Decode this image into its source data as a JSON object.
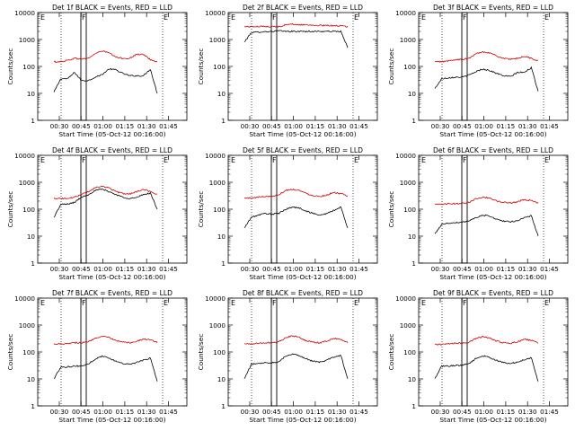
{
  "page": {
    "y_axis_label": "Counts/sec",
    "x_axis_label": "Start Time (05-Oct-12 00:16:00)"
  },
  "colors": {
    "events": "#000000",
    "lld": "#cc0000",
    "axis": "#000000"
  },
  "chart_data": [
    {
      "type": "line",
      "title": "Det 1f BLACK = Events, RED = LLD",
      "xlabel": "Start Time (05-Oct-12 00:16:00)",
      "ylabel": "Counts/sec",
      "yscale": "log",
      "ylim": [
        1,
        10000
      ],
      "ytick_labels": [
        "1",
        "10",
        "100",
        "1000",
        "10000"
      ],
      "xtick_labels": [
        "00:30",
        "00:45",
        "01:00",
        "01:15",
        "01:30",
        "01:45"
      ],
      "markers": [
        "E",
        "F",
        "E"
      ],
      "series": [
        {
          "name": "Events",
          "values": [
            11,
            35,
            35,
            60,
            30,
            30,
            40,
            50,
            80,
            75,
            55,
            45,
            45,
            45,
            80,
            10
          ]
        },
        {
          "name": "LLD",
          "values": [
            150,
            150,
            170,
            200,
            190,
            200,
            300,
            380,
            320,
            220,
            200,
            200,
            280,
            280,
            180,
            150
          ]
        }
      ]
    },
    {
      "type": "line",
      "title": "Det 2f BLACK = Events, RED = LLD",
      "xlabel": "Start Time (05-Oct-12 00:16:00)",
      "ylabel": "Counts/sec",
      "yscale": "log",
      "ylim": [
        1,
        10000
      ],
      "ytick_labels": [
        "1",
        "10",
        "100",
        "1000",
        "10000"
      ],
      "xtick_labels": [
        "00:30",
        "00:45",
        "01:00",
        "01:15",
        "01:30",
        "01:45"
      ],
      "markers": [
        "E",
        "F",
        "E"
      ],
      "series": [
        {
          "name": "Events",
          "values": [
            800,
            1800,
            1900,
            1950,
            2000,
            2100,
            2000,
            2000,
            2000,
            2000,
            2000,
            2000,
            2000,
            2000,
            2000,
            500
          ]
        },
        {
          "name": "LLD",
          "values": [
            3000,
            3000,
            3000,
            3100,
            3000,
            3000,
            3500,
            3700,
            3500,
            3500,
            3400,
            3300,
            3300,
            3300,
            3200,
            3000
          ]
        }
      ]
    },
    {
      "type": "line",
      "title": "Det 3f BLACK = Events, RED = LLD",
      "xlabel": "Start Time (05-Oct-12 00:16:00)",
      "ylabel": "Counts/sec",
      "yscale": "log",
      "ylim": [
        1,
        10000
      ],
      "ytick_labels": [
        "1",
        "10",
        "100",
        "1000",
        "10000"
      ],
      "xtick_labels": [
        "00:30",
        "00:45",
        "01:00",
        "01:15",
        "01:30",
        "01:45"
      ],
      "markers": [
        "E",
        "F",
        "E"
      ],
      "series": [
        {
          "name": "Events",
          "values": [
            15,
            35,
            38,
            40,
            40,
            48,
            65,
            80,
            70,
            55,
            45,
            42,
            60,
            60,
            90,
            12
          ]
        },
        {
          "name": "LLD",
          "values": [
            150,
            150,
            160,
            180,
            180,
            200,
            300,
            350,
            320,
            240,
            200,
            180,
            200,
            240,
            200,
            160
          ]
        }
      ]
    },
    {
      "type": "line",
      "title": "Det 4f BLACK = Events, RED = LLD",
      "xlabel": "Start Time (05-Oct-12 00:16:00)",
      "ylabel": "Counts/sec",
      "yscale": "log",
      "ylim": [
        1,
        10000
      ],
      "ytick_labels": [
        "1",
        "10",
        "100",
        "1000",
        "10000"
      ],
      "xtick_labels": [
        "00:30",
        "00:45",
        "01:00",
        "01:15",
        "01:30",
        "01:45"
      ],
      "markers": [
        "E",
        "F",
        "E"
      ],
      "series": [
        {
          "name": "Events",
          "values": [
            50,
            150,
            155,
            180,
            280,
            350,
            500,
            550,
            450,
            350,
            280,
            250,
            270,
            350,
            400,
            100
          ]
        },
        {
          "name": "LLD",
          "values": [
            260,
            250,
            250,
            280,
            350,
            450,
            620,
            700,
            620,
            450,
            380,
            370,
            450,
            550,
            450,
            350
          ]
        }
      ]
    },
    {
      "type": "line",
      "title": "Det 5f BLACK = Events, RED = LLD",
      "xlabel": "Start Time (05-Oct-12 00:16:00)",
      "ylabel": "Counts/sec",
      "yscale": "log",
      "ylim": [
        1,
        10000
      ],
      "ytick_labels": [
        "1",
        "10",
        "100",
        "1000",
        "10000"
      ],
      "xtick_labels": [
        "00:30",
        "00:45",
        "01:00",
        "01:15",
        "01:30",
        "01:45"
      ],
      "markers": [
        "E",
        "F",
        "E"
      ],
      "series": [
        {
          "name": "Events",
          "values": [
            20,
            50,
            60,
            70,
            65,
            70,
            100,
            120,
            110,
            85,
            70,
            60,
            70,
            90,
            120,
            20
          ]
        },
        {
          "name": "LLD",
          "values": [
            260,
            260,
            280,
            300,
            300,
            350,
            500,
            550,
            500,
            380,
            320,
            300,
            340,
            420,
            380,
            300
          ]
        }
      ]
    },
    {
      "type": "line",
      "title": "Det 6f BLACK = Events, RED = LLD",
      "xlabel": "Start Time (05-Oct-12 00:16:00)",
      "ylabel": "Counts/sec",
      "yscale": "log",
      "ylim": [
        1,
        10000
      ],
      "ytick_labels": [
        "1",
        "10",
        "100",
        "1000",
        "10000"
      ],
      "xtick_labels": [
        "00:30",
        "00:45",
        "01:00",
        "01:15",
        "01:30",
        "01:45"
      ],
      "markers": [
        "E",
        "F",
        "E"
      ],
      "series": [
        {
          "name": "Events",
          "values": [
            12,
            28,
            30,
            32,
            32,
            38,
            50,
            60,
            55,
            42,
            36,
            34,
            38,
            48,
            58,
            10
          ]
        },
        {
          "name": "LLD",
          "values": [
            150,
            150,
            160,
            160,
            170,
            180,
            250,
            280,
            260,
            200,
            180,
            170,
            190,
            230,
            210,
            170
          ]
        }
      ]
    },
    {
      "type": "line",
      "title": "Det 7f BLACK = Events, RED = LLD",
      "xlabel": "Start Time (05-Oct-12 00:16:00)",
      "ylabel": "Counts/sec",
      "yscale": "log",
      "ylim": [
        1,
        10000
      ],
      "ytick_labels": [
        "1",
        "10",
        "100",
        "1000",
        "10000"
      ],
      "xtick_labels": [
        "00:30",
        "00:45",
        "01:00",
        "01:15",
        "01:30",
        "01:45"
      ],
      "markers": [
        "E",
        "F",
        "E"
      ],
      "series": [
        {
          "name": "Events",
          "values": [
            10,
            28,
            28,
            30,
            30,
            36,
            55,
            70,
            60,
            45,
            38,
            35,
            40,
            50,
            60,
            8
          ]
        },
        {
          "name": "LLD",
          "values": [
            200,
            200,
            210,
            220,
            220,
            240,
            330,
            380,
            340,
            260,
            230,
            220,
            250,
            300,
            280,
            230
          ]
        }
      ]
    },
    {
      "type": "line",
      "title": "Det 8f BLACK = Events, RED = LLD",
      "xlabel": "Start Time (05-Oct-12 00:16:00)",
      "ylabel": "Counts/sec",
      "yscale": "log",
      "ylim": [
        1,
        10000
      ],
      "ytick_labels": [
        "1",
        "10",
        "100",
        "1000",
        "10000"
      ],
      "xtick_labels": [
        "00:30",
        "00:45",
        "01:00",
        "01:15",
        "01:30",
        "01:45"
      ],
      "markers": [
        "E",
        "F",
        "E"
      ],
      "series": [
        {
          "name": "Events",
          "values": [
            10,
            35,
            38,
            40,
            40,
            45,
            70,
            85,
            75,
            55,
            45,
            42,
            50,
            65,
            75,
            10
          ]
        },
        {
          "name": "LLD",
          "values": [
            200,
            200,
            210,
            220,
            220,
            240,
            340,
            400,
            350,
            260,
            230,
            220,
            260,
            320,
            290,
            230
          ]
        }
      ]
    },
    {
      "type": "line",
      "title": "Det 9f BLACK = Events, RED = LLD",
      "xlabel": "Start Time (05-Oct-12 00:16:00)",
      "ylabel": "Counts/sec",
      "yscale": "log",
      "ylim": [
        1,
        10000
      ],
      "ytick_labels": [
        "1",
        "10",
        "100",
        "1000",
        "10000"
      ],
      "xtick_labels": [
        "00:30",
        "00:45",
        "01:00",
        "01:15",
        "01:30",
        "01:45"
      ],
      "markers": [
        "E",
        "F",
        "E"
      ],
      "series": [
        {
          "name": "Events",
          "values": [
            10,
            30,
            30,
            32,
            32,
            38,
            58,
            72,
            62,
            48,
            40,
            37,
            42,
            52,
            62,
            8
          ]
        },
        {
          "name": "LLD",
          "values": [
            190,
            190,
            200,
            210,
            210,
            230,
            320,
            370,
            330,
            250,
            220,
            210,
            240,
            290,
            270,
            220
          ]
        }
      ]
    }
  ]
}
